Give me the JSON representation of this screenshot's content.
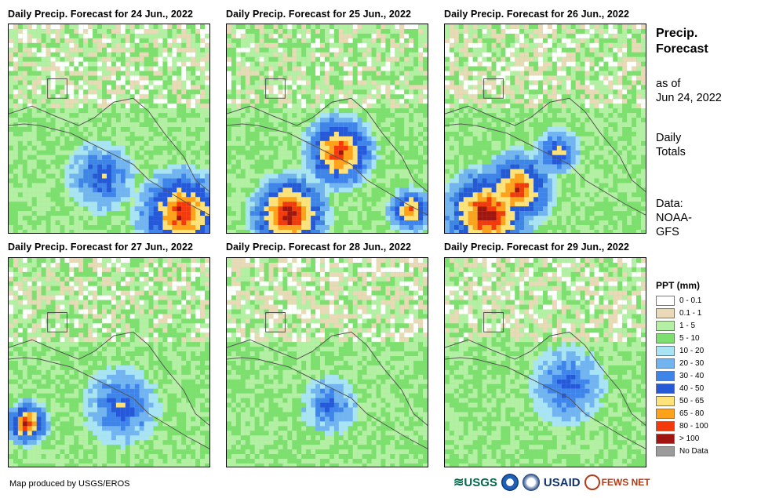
{
  "panels": [
    {
      "title": "Daily Precip. Forecast for 24 Jun., 2022"
    },
    {
      "title": "Daily Precip. Forecast for 25 Jun., 2022"
    },
    {
      "title": "Daily Precip. Forecast for 26 Jun., 2022"
    },
    {
      "title": "Daily Precip. Forecast for 27 Jun., 2022"
    },
    {
      "title": "Daily Precip. Forecast for 28 Jun., 2022"
    },
    {
      "title": "Daily Precip. Forecast for 29 Jun., 2022"
    }
  ],
  "side": {
    "title_line1": "Precip.",
    "title_line2": "Forecast",
    "asof_line1": "as of",
    "asof_line2": "Jun 24, 2022",
    "totals_line1": "Daily",
    "totals_line2": "Totals",
    "data_line1": "Data:",
    "data_line2": "NOAA-",
    "data_line3": "GFS"
  },
  "legend": {
    "title": "PPT (mm)",
    "items": [
      {
        "label": "0 - 0.1",
        "color": "#ffffff"
      },
      {
        "label": "0.1 - 1",
        "color": "#e9d9b6"
      },
      {
        "label": "1 - 5",
        "color": "#b4f0a4"
      },
      {
        "label": "5 - 10",
        "color": "#7de06e"
      },
      {
        "label": "10 - 20",
        "color": "#a9e4f5"
      },
      {
        "label": "20 - 30",
        "color": "#71b4f0"
      },
      {
        "label": "30 - 40",
        "color": "#3f84e8"
      },
      {
        "label": "40 - 50",
        "color": "#2559d8"
      },
      {
        "label": "50 - 65",
        "color": "#ffe27a"
      },
      {
        "label": "65 - 80",
        "color": "#ffa21b"
      },
      {
        "label": "80 - 100",
        "color": "#f23a0c"
      },
      {
        "label": "> 100",
        "color": "#a0150f"
      },
      {
        "label": "No Data",
        "color": "#9b9b9b"
      }
    ]
  },
  "credit": "Map produced by USGS/EROS",
  "logos": {
    "usgs": "USGS",
    "usaid": "USAID",
    "fewsnet": "FEWS NET"
  },
  "colors": {
    "land_outline": "#555555",
    "ocean_base": "#8fe38a"
  }
}
